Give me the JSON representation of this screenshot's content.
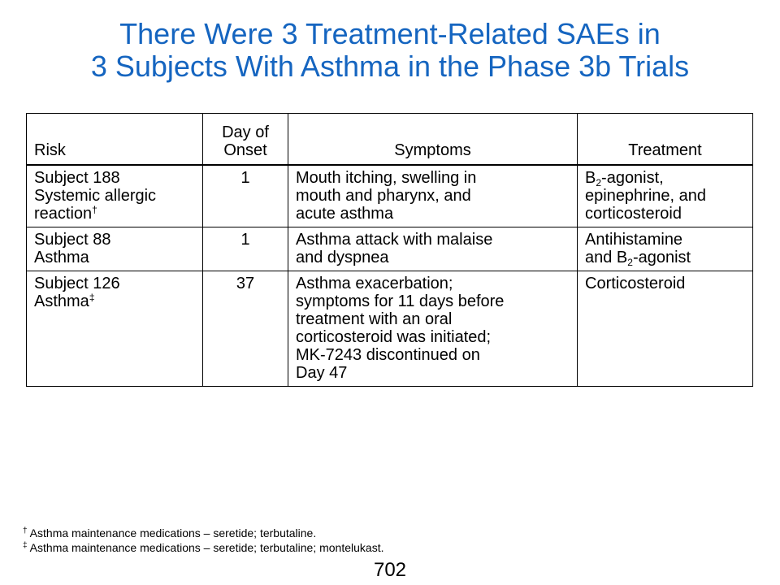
{
  "title": {
    "line1": "There Were 3 Treatment-Related SAEs in",
    "line2": "3 Subjects With Asthma in the Phase 3b Trials"
  },
  "table": {
    "headers": {
      "risk": "Risk",
      "day_line1": "Day of",
      "day_line2": "Onset",
      "symptoms": "Symptoms",
      "treatment": "Treatment"
    },
    "rows": [
      {
        "risk_subject": "Subject 188",
        "risk_line2": "Systemic allergic",
        "risk_line3": "reaction",
        "risk_mark": "†",
        "day": "1",
        "symptoms": [
          "Mouth itching, swelling in",
          "mouth and pharynx,  and",
          "acute asthma"
        ],
        "treatment_b": "B",
        "treatment_sub": "2",
        "treatment_rest": "-agonist,",
        "treatment_line2": "epinephrine, and",
        "treatment_line3": "corticosteroid"
      },
      {
        "risk_subject": "Subject 88",
        "risk_line2": "Asthma",
        "day": "1",
        "symptoms": [
          "Asthma attack with malaise",
          "and dyspnea"
        ],
        "treatment_line1": "Antihistamine",
        "treatment_pre": "and B",
        "treatment_sub": "2",
        "treatment_rest": "-agonist"
      },
      {
        "risk_subject": "Subject 126",
        "risk_line2": "Asthma",
        "risk_mark": "‡",
        "day": "37",
        "symptoms": [
          "Asthma exacerbation;",
          "symptoms for 11 days before",
          "treatment with an oral",
          "corticosteroid was initiated;",
          "MK-7243 discontinued on",
          "Day 47"
        ],
        "treatment_line1": "Corticosteroid"
      }
    ]
  },
  "footnotes": [
    {
      "mark": "†",
      "text": " Asthma maintenance medications – seretide; terbutaline."
    },
    {
      "mark": "‡",
      "text": " Asthma maintenance medications – seretide; terbutaline; montelukast."
    }
  ],
  "page_number": "702"
}
